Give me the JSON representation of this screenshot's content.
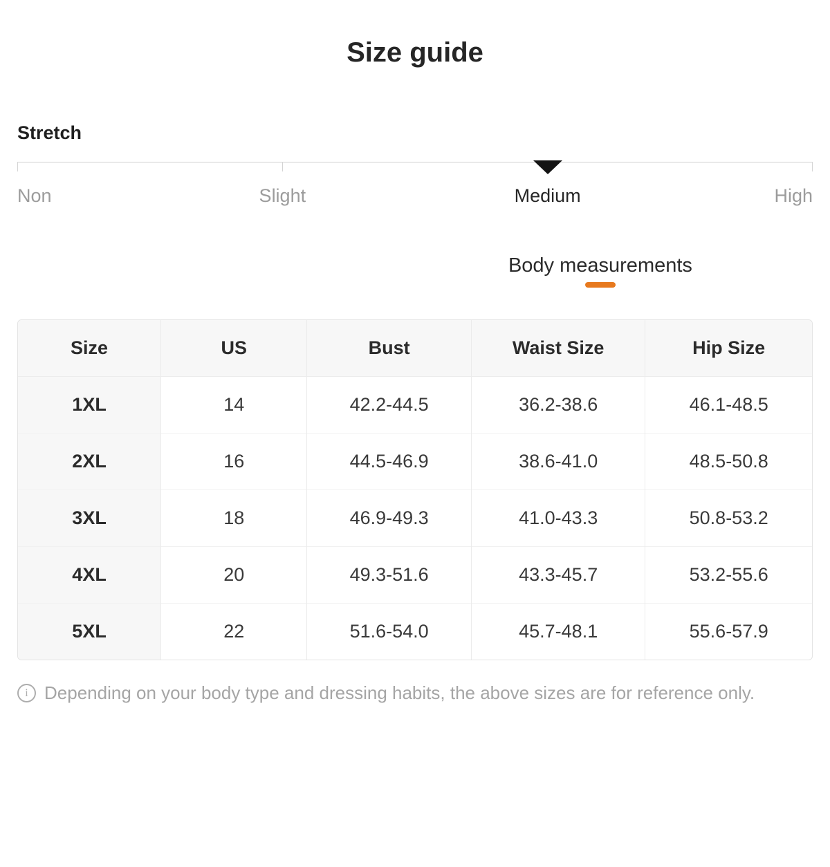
{
  "page": {
    "title": "Size guide"
  },
  "stretch": {
    "label": "Stretch",
    "levels": [
      {
        "label": "Non",
        "selected": false
      },
      {
        "label": "Slight",
        "selected": false
      },
      {
        "label": "Medium",
        "selected": true
      },
      {
        "label": "High",
        "selected": false
      }
    ],
    "selected_index": 2,
    "selected_value": "Medium"
  },
  "tabs": {
    "body_measurements_label": "Body measurements"
  },
  "size_table": {
    "headers": [
      "Size",
      "US",
      "Bust",
      "Waist Size",
      "Hip Size"
    ],
    "rows": [
      [
        "1XL",
        "14",
        "42.2-44.5",
        "36.2-38.6",
        "46.1-48.5"
      ],
      [
        "2XL",
        "16",
        "44.5-46.9",
        "38.6-41.0",
        "48.5-50.8"
      ],
      [
        "3XL",
        "18",
        "46.9-49.3",
        "41.0-43.3",
        "50.8-53.2"
      ],
      [
        "4XL",
        "20",
        "49.3-51.6",
        "43.3-45.7",
        "53.2-55.6"
      ],
      [
        "5XL",
        "22",
        "51.6-54.0",
        "45.7-48.1",
        "55.6-57.9"
      ]
    ]
  },
  "footer": {
    "icon": "info-icon",
    "note": "Depending on your body type and dressing habits, the above sizes are for reference only."
  },
  "colors": {
    "accent": "#e7791e",
    "selected_text": "#262626",
    "muted_text": "#9c9c9c",
    "marker": "#141414"
  }
}
